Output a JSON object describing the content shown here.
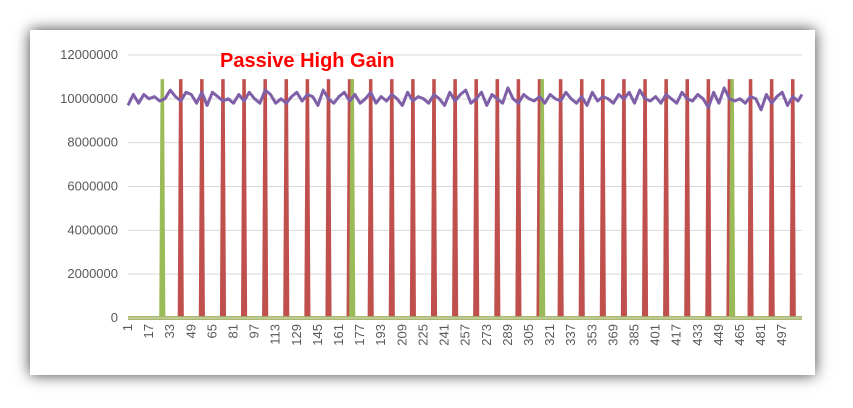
{
  "chart_data": {
    "type": "line",
    "title": "Passive High Gain",
    "title_color": "#ff0000",
    "xlabel": "",
    "ylabel": "",
    "ylim": [
      0,
      12000000
    ],
    "y_ticks": [
      "0",
      "2000000",
      "4000000",
      "6000000",
      "8000000",
      "10000000",
      "12000000"
    ],
    "x_range": [
      1,
      512
    ],
    "x_tick_labels": [
      "1",
      "17",
      "33",
      "49",
      "65",
      "81",
      "97",
      "113",
      "129",
      "145",
      "161",
      "177",
      "193",
      "209",
      "225",
      "241",
      "257",
      "273",
      "289",
      "305",
      "321",
      "337",
      "353",
      "369",
      "385",
      "401",
      "417",
      "433",
      "449",
      "465",
      "481",
      "497"
    ],
    "grid": true,
    "legend": "none",
    "series": [
      {
        "color": "#7f5fa8",
        "points": [
          [
            1,
            9700000
          ],
          [
            5,
            10200000
          ],
          [
            9,
            9800000
          ],
          [
            13,
            10200000
          ],
          [
            17,
            10000000
          ],
          [
            21,
            10100000
          ],
          [
            25,
            9900000
          ],
          [
            29,
            10000000
          ],
          [
            33,
            10400000
          ],
          [
            37,
            10100000
          ],
          [
            41,
            9900000
          ],
          [
            45,
            10300000
          ],
          [
            49,
            10200000
          ],
          [
            53,
            9800000
          ],
          [
            57,
            10300000
          ],
          [
            61,
            9700000
          ],
          [
            65,
            10300000
          ],
          [
            69,
            10100000
          ],
          [
            73,
            9900000
          ],
          [
            77,
            10000000
          ],
          [
            81,
            9800000
          ],
          [
            85,
            10200000
          ],
          [
            89,
            9900000
          ],
          [
            93,
            10300000
          ],
          [
            97,
            10000000
          ],
          [
            101,
            9800000
          ],
          [
            105,
            10400000
          ],
          [
            109,
            10200000
          ],
          [
            113,
            9800000
          ],
          [
            117,
            10000000
          ],
          [
            121,
            9800000
          ],
          [
            125,
            10100000
          ],
          [
            129,
            10300000
          ],
          [
            133,
            9900000
          ],
          [
            137,
            10200000
          ],
          [
            141,
            10100000
          ],
          [
            145,
            9700000
          ],
          [
            149,
            10400000
          ],
          [
            153,
            10000000
          ],
          [
            157,
            9800000
          ],
          [
            161,
            10100000
          ],
          [
            165,
            10300000
          ],
          [
            169,
            9900000
          ],
          [
            173,
            10200000
          ],
          [
            177,
            9800000
          ],
          [
            181,
            10000000
          ],
          [
            185,
            10300000
          ],
          [
            189,
            9800000
          ],
          [
            193,
            10100000
          ],
          [
            197,
            9900000
          ],
          [
            201,
            10200000
          ],
          [
            205,
            10000000
          ],
          [
            209,
            9700000
          ],
          [
            213,
            10300000
          ],
          [
            217,
            9900000
          ],
          [
            221,
            10100000
          ],
          [
            225,
            10000000
          ],
          [
            229,
            9800000
          ],
          [
            233,
            10200000
          ],
          [
            237,
            10000000
          ],
          [
            241,
            9700000
          ],
          [
            245,
            10300000
          ],
          [
            249,
            9900000
          ],
          [
            253,
            10200000
          ],
          [
            257,
            10400000
          ],
          [
            261,
            9800000
          ],
          [
            265,
            10000000
          ],
          [
            269,
            10300000
          ],
          [
            273,
            9700000
          ],
          [
            277,
            10200000
          ],
          [
            281,
            10000000
          ],
          [
            285,
            9800000
          ],
          [
            289,
            10500000
          ],
          [
            293,
            10000000
          ],
          [
            297,
            9800000
          ],
          [
            301,
            10200000
          ],
          [
            305,
            10000000
          ],
          [
            309,
            9900000
          ],
          [
            313,
            10100000
          ],
          [
            317,
            9800000
          ],
          [
            321,
            10200000
          ],
          [
            325,
            10000000
          ],
          [
            329,
            9900000
          ],
          [
            333,
            10300000
          ],
          [
            337,
            10000000
          ],
          [
            341,
            9800000
          ],
          [
            345,
            10100000
          ],
          [
            349,
            9700000
          ],
          [
            353,
            10300000
          ],
          [
            357,
            9900000
          ],
          [
            361,
            10100000
          ],
          [
            365,
            10000000
          ],
          [
            369,
            9800000
          ],
          [
            373,
            10200000
          ],
          [
            377,
            10000000
          ],
          [
            381,
            10300000
          ],
          [
            385,
            9800000
          ],
          [
            389,
            10400000
          ],
          [
            393,
            10000000
          ],
          [
            397,
            9900000
          ],
          [
            401,
            10100000
          ],
          [
            405,
            9800000
          ],
          [
            409,
            10200000
          ],
          [
            413,
            10000000
          ],
          [
            417,
            9800000
          ],
          [
            421,
            10300000
          ],
          [
            425,
            10000000
          ],
          [
            429,
            9900000
          ],
          [
            433,
            10200000
          ],
          [
            437,
            10000000
          ],
          [
            441,
            9600000
          ],
          [
            445,
            10300000
          ],
          [
            449,
            9800000
          ],
          [
            453,
            10500000
          ],
          [
            457,
            10000000
          ],
          [
            461,
            9900000
          ],
          [
            465,
            10000000
          ],
          [
            469,
            9800000
          ],
          [
            473,
            10100000
          ],
          [
            477,
            10000000
          ],
          [
            481,
            9500000
          ],
          [
            485,
            10200000
          ],
          [
            489,
            9800000
          ],
          [
            493,
            10100000
          ],
          [
            497,
            10300000
          ],
          [
            501,
            9700000
          ],
          [
            505,
            10100000
          ],
          [
            509,
            9900000
          ],
          [
            512,
            10200000
          ]
        ]
      },
      {
        "color": "#c0504d",
        "spike_value": 10900000,
        "spike_positions": [
          41,
          57,
          73,
          89,
          105,
          121,
          137,
          153,
          169,
          185,
          201,
          217,
          233,
          249,
          265,
          281,
          297,
          313,
          329,
          345,
          361,
          377,
          393,
          409,
          425,
          441,
          457,
          473,
          489,
          505
        ]
      },
      {
        "color": "#9bbb59",
        "spike_value": 10900000,
        "spike_positions": [
          27,
          171,
          315,
          459
        ]
      }
    ]
  }
}
